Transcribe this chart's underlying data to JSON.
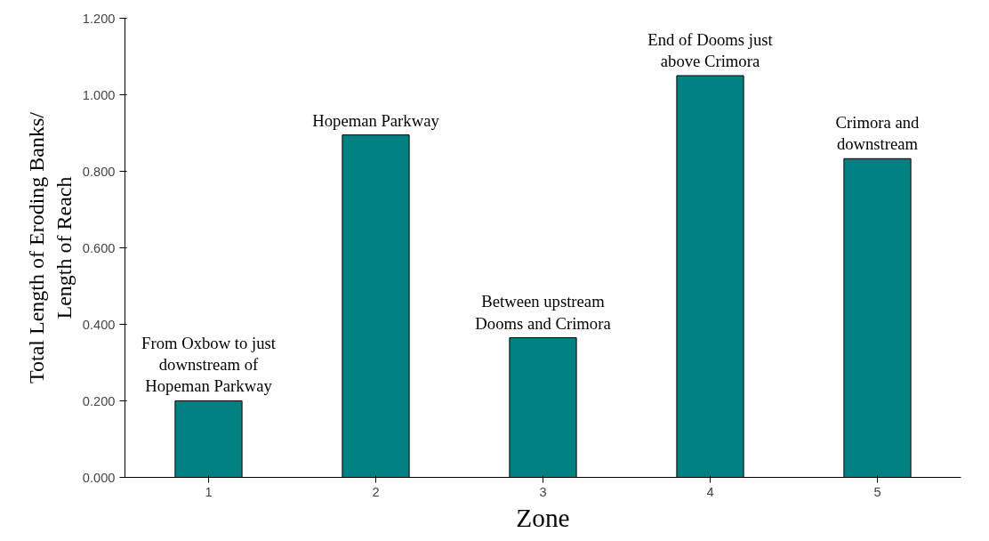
{
  "chart_data": {
    "type": "bar",
    "xlabel": "Zone",
    "ylabel": "Total Length of Eroding Banks/\nLength of Reach",
    "categories": [
      "1",
      "2",
      "3",
      "4",
      "5"
    ],
    "values": [
      0.2,
      0.895,
      0.365,
      1.05,
      0.833
    ],
    "color": "#008080",
    "ylim": [
      0,
      1.2
    ],
    "yticks": [
      {
        "value": 0,
        "label": "0.000"
      },
      {
        "value": 0.2,
        "label": "0.200"
      },
      {
        "value": 0.4,
        "label": "0.400"
      },
      {
        "value": 0.6,
        "label": "0.600"
      },
      {
        "value": 0.8,
        "label": "0.800"
      },
      {
        "value": 1.0,
        "label": "1.000"
      },
      {
        "value": 1.2,
        "label": "1.200"
      }
    ],
    "grid": false,
    "annotations": [
      {
        "text": "From Oxbow to just\ndownstream of\nHopeman Parkway",
        "x": "1",
        "y": 0.2
      },
      {
        "text": "Hopeman Parkway",
        "x": "2",
        "y": 0.895
      },
      {
        "text": "Between upstream\nDooms and Crimora",
        "x": "3",
        "y": 0.365
      },
      {
        "text": "End of Dooms just\nabove Crimora",
        "x": "4",
        "y": 1.05
      },
      {
        "text": "Crimora and\ndownstream",
        "x": "5",
        "y": 0.833
      }
    ]
  }
}
